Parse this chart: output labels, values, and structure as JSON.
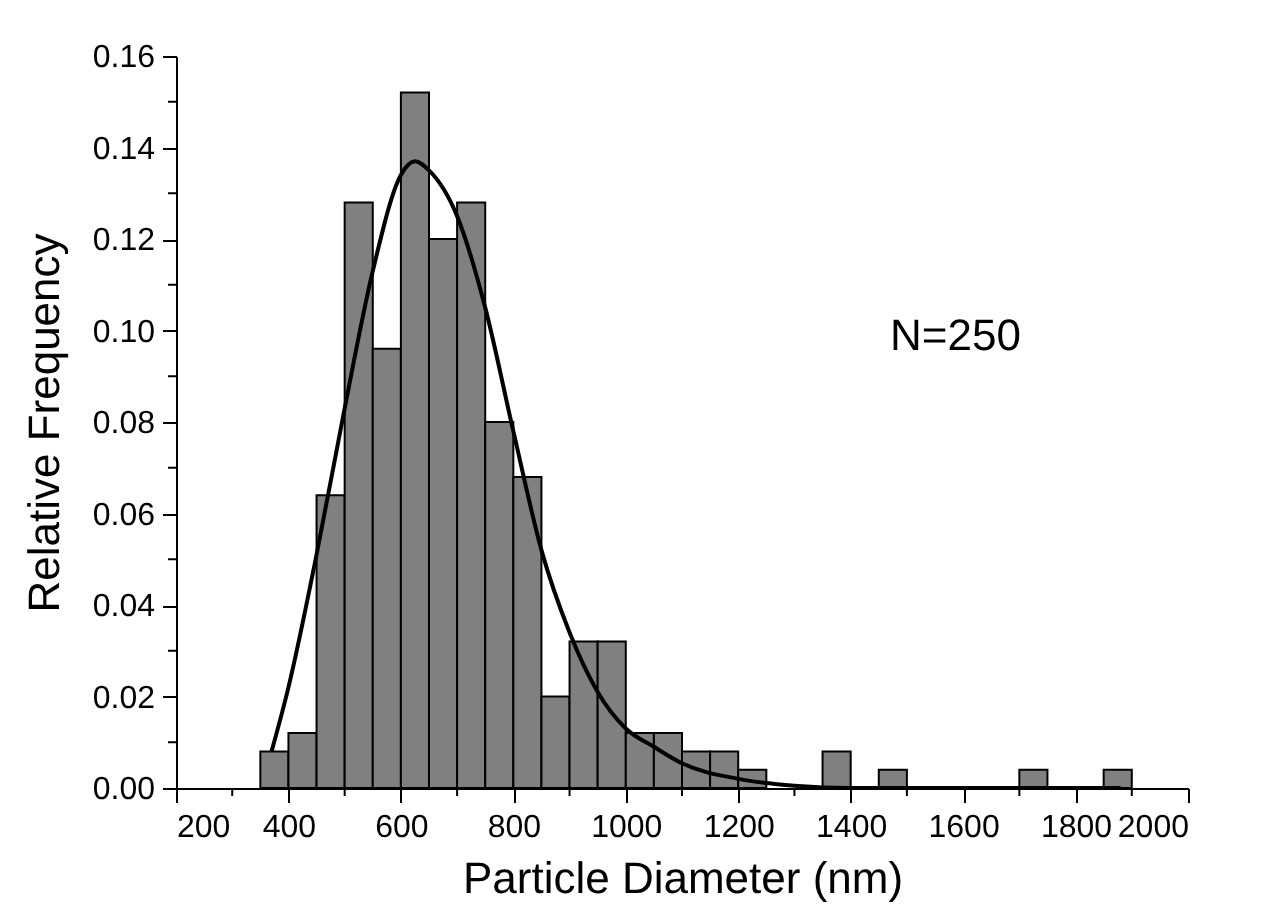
{
  "chart_data": {
    "type": "histogram",
    "xlabel": "Particle Diameter (nm)",
    "ylabel": "Relative Frequency",
    "annotations": [
      "N=250"
    ],
    "series": [
      {
        "color": "#808080",
        "bins": [
          350,
          400,
          450,
          500,
          550,
          600,
          650,
          700,
          750,
          800,
          850,
          900,
          950,
          1000,
          1050,
          1100,
          1150,
          1200,
          1250,
          1300,
          1350,
          1400,
          1450,
          1500,
          1550,
          1600,
          1650,
          1700,
          1750,
          1800,
          1850,
          1900
        ],
        "values": [
          0.008,
          0.012,
          0.064,
          0.128,
          0.096,
          0.152,
          0.12,
          0.128,
          0.08,
          0.068,
          0.02,
          0.032,
          0.032,
          0.012,
          0.012,
          0.008,
          0.008,
          0.004,
          0,
          0,
          0.008,
          0,
          0.004,
          0,
          0,
          0,
          0,
          0.004,
          0,
          0,
          0.004
        ]
      },
      {
        "type": "line",
        "color": "#000000",
        "x": [
          370,
          400,
          450,
          500,
          550,
          600,
          625,
          650,
          700,
          750,
          800,
          850,
          900,
          950,
          1000,
          1050,
          1100,
          1200,
          1300,
          1400,
          1600,
          1880
        ],
        "values": [
          0.008,
          0.022,
          0.051,
          0.083,
          0.113,
          0.134,
          0.137,
          0.135,
          0.125,
          0.105,
          0.078,
          0.052,
          0.034,
          0.021,
          0.013,
          0.009,
          0.0054,
          0.002,
          0.0005,
          0,
          0,
          0
        ]
      }
    ],
    "xlim": [
      200,
      2000
    ],
    "xticks": [
      200,
      {
        "value": 300,
        "label": null
      },
      400,
      {
        "value": 500,
        "label": null
      },
      600,
      {
        "value": 700,
        "label": null
      },
      800,
      {
        "value": 900,
        "label": null
      },
      1000,
      {
        "value": 1100,
        "label": null
      },
      1200,
      {
        "value": 1300,
        "label": null
      },
      1400,
      {
        "value": 1500,
        "label": null
      },
      1600,
      {
        "value": 1700,
        "label": null
      },
      1800,
      {
        "value": 1900,
        "label": null
      },
      2000
    ],
    "ylim": [
      0,
      0.16
    ],
    "yticks": [
      {
        "value": 0,
        "label": "0.00"
      },
      {
        "value": 0.01,
        "label": null
      },
      {
        "value": 0.02,
        "label": "0.02"
      },
      {
        "value": 0.03,
        "label": null
      },
      {
        "value": 0.04,
        "label": "0.04"
      },
      {
        "value": 0.05,
        "label": null
      },
      {
        "value": 0.06,
        "label": "0.06"
      },
      {
        "value": 0.07,
        "label": null
      },
      {
        "value": 0.08,
        "label": "0.08"
      },
      {
        "value": 0.09,
        "label": null
      },
      {
        "value": 0.1,
        "label": "0.10"
      },
      {
        "value": 0.11,
        "label": null
      },
      {
        "value": 0.12,
        "label": "0.12"
      },
      {
        "value": 0.13,
        "label": null
      },
      {
        "value": 0.14,
        "label": "0.14"
      },
      {
        "value": 0.15,
        "label": null
      },
      {
        "value": 0.16,
        "label": "0.16"
      }
    ],
    "grid": false
  }
}
